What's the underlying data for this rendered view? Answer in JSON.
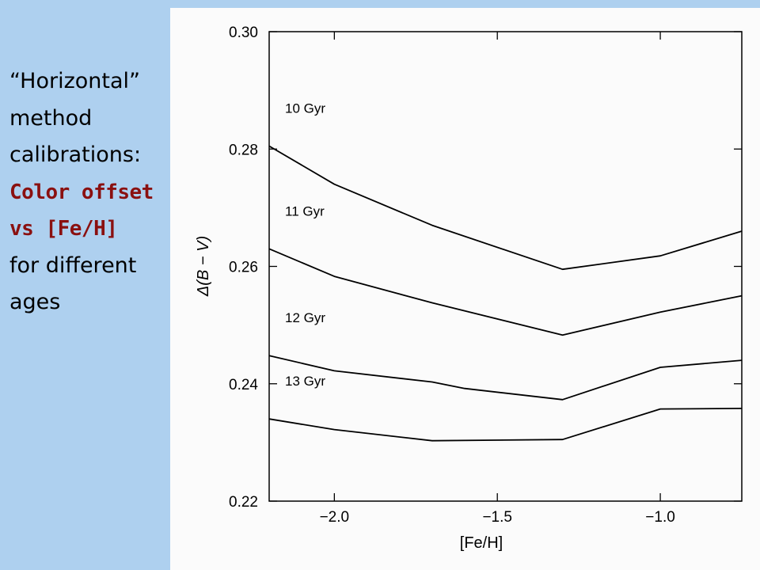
{
  "slide_text": {
    "line1": "“Horizontal”",
    "line2": "method",
    "line3": "calibrations:",
    "line4": "Color offset",
    "line5": "vs [Fe/H]",
    "line6": "for different",
    "line7": "ages"
  },
  "colors": {
    "background": "#aed0ef",
    "emphasis": "#8a1010",
    "figure_background": "#fbfbfb",
    "lines": "#000000"
  },
  "chart_data": {
    "type": "line",
    "xlabel": "[Fe/H]",
    "ylabel": "Δ(B − V)",
    "xlim": [
      -2.2,
      -0.75
    ],
    "ylim": [
      0.22,
      0.3
    ],
    "x_ticks": [
      -2.0,
      -1.5,
      -1.0
    ],
    "x_tick_labels": [
      "−2.0",
      "−1.5",
      "−1.0"
    ],
    "y_ticks": [
      0.22,
      0.24,
      0.26,
      0.28,
      0.3
    ],
    "y_tick_labels": [
      "0.22",
      "0.24",
      "0.26",
      "0.28",
      "0.30"
    ],
    "grid": false,
    "series": [
      {
        "name": "10 Gyr",
        "x": [
          -2.2,
          -2.0,
          -1.7,
          -1.3,
          -1.0,
          -0.75
        ],
        "y": [
          0.2805,
          0.274,
          0.267,
          0.2595,
          0.2618,
          0.266
        ]
      },
      {
        "name": "11 Gyr",
        "x": [
          -2.2,
          -2.0,
          -1.7,
          -1.3,
          -1.0,
          -0.75
        ],
        "y": [
          0.263,
          0.2583,
          0.2538,
          0.2483,
          0.2522,
          0.255
        ]
      },
      {
        "name": "12 Gyr",
        "x": [
          -2.2,
          -2.0,
          -1.7,
          -1.6,
          -1.3,
          -1.0,
          -0.75
        ],
        "y": [
          0.2448,
          0.2422,
          0.2403,
          0.2392,
          0.2373,
          0.2428,
          0.244
        ]
      },
      {
        "name": "13 Gyr",
        "x": [
          -2.2,
          -2.0,
          -1.7,
          -1.3,
          -1.0,
          -0.75
        ],
        "y": [
          0.234,
          0.2322,
          0.2303,
          0.2305,
          0.2357,
          0.2358
        ]
      }
    ]
  }
}
